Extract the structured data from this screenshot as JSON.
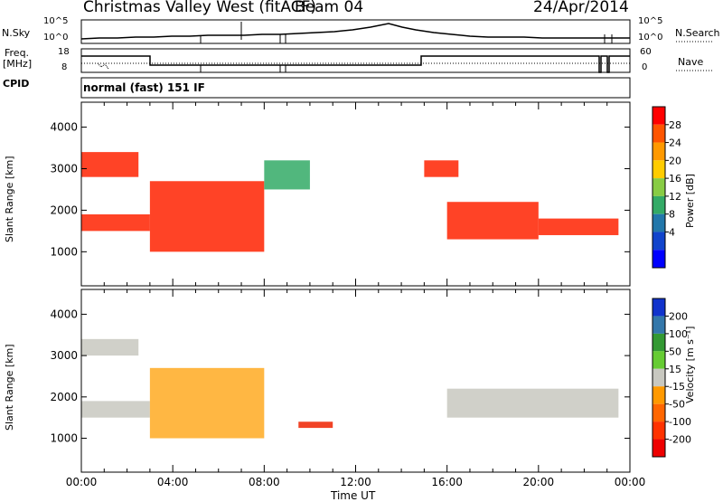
{
  "header": {
    "station": "Christmas Valley West (fitACF)",
    "beam": "Beam 04",
    "date": "24/Apr/2014"
  },
  "strips": {
    "nsky_label": "N.Sky",
    "nsky_ticks": [
      "10^5",
      "10^0"
    ],
    "nsearch_label": "N.Search",
    "freq_label_1": "Freq.",
    "freq_label_2": "[MHz]",
    "freq_ticks": [
      "18",
      "8"
    ],
    "nave_label": "Nave",
    "nave_ticks": [
      "60",
      "0"
    ],
    "cpid_label": "CPID",
    "cpid_value": "normal (fast) 151 IF"
  },
  "chart_data": [
    {
      "type": "heatmap",
      "name": "Power",
      "ylabel": "Slant Range [km]",
      "xlabel": "Time UT",
      "xlim": [
        "00:00",
        "24:00"
      ],
      "ylim": [
        180,
        4600
      ],
      "y_ticks": [
        1000,
        2000,
        3000,
        4000
      ],
      "x_tick_labels": [
        "00:00",
        "04:00",
        "08:00",
        "12:00",
        "16:00",
        "20:00",
        "00:00"
      ],
      "colorbar": {
        "label": "Power [dB]",
        "ticks": [
          "28",
          "24",
          "20",
          "16",
          "12",
          "8",
          "4"
        ],
        "colors": [
          "#ff0000",
          "#ff5500",
          "#ff9900",
          "#ffcc00",
          "#88cc44",
          "#33aa66",
          "#2277aa",
          "#1144cc",
          "#0000ff"
        ]
      },
      "bands": [
        {
          "t": [
            0,
            3
          ],
          "range": [
            1500,
            1900
          ],
          "level": "high"
        },
        {
          "t": [
            0,
            2.5
          ],
          "range": [
            2800,
            3400
          ],
          "level": "high"
        },
        {
          "t": [
            3,
            8
          ],
          "range": [
            1000,
            2700
          ],
          "level": "high"
        },
        {
          "t": [
            8,
            10
          ],
          "range": [
            2500,
            3200
          ],
          "level": "medium"
        },
        {
          "t": [
            15,
            16.5
          ],
          "range": [
            2800,
            3200
          ],
          "level": "high"
        },
        {
          "t": [
            16,
            20
          ],
          "range": [
            1300,
            2200
          ],
          "level": "high"
        },
        {
          "t": [
            20,
            23.5
          ],
          "range": [
            1400,
            1800
          ],
          "level": "high"
        }
      ]
    },
    {
      "type": "heatmap",
      "name": "Velocity",
      "ylabel": "Slant Range [km]",
      "xlabel": "Time UT",
      "xlim": [
        "00:00",
        "24:00"
      ],
      "ylim": [
        180,
        4600
      ],
      "y_ticks": [
        1000,
        2000,
        3000,
        4000
      ],
      "x_tick_labels": [
        "00:00",
        "04:00",
        "08:00",
        "12:00",
        "16:00",
        "20:00",
        "00:00"
      ],
      "colorbar": {
        "label": "Velocity [m s⁻¹]",
        "ticks": [
          "200",
          "100",
          "50",
          "15",
          "-15",
          "-50",
          "-100",
          "-200"
        ],
        "colors": [
          "#1133cc",
          "#3377aa",
          "#339933",
          "#66cc33",
          "#c8c8c0",
          "#ff9900",
          "#ff6600",
          "#ff3300",
          "#ee0000"
        ]
      },
      "bands": [
        {
          "t": [
            0,
            3
          ],
          "range": [
            1500,
            1900
          ],
          "level": "ground"
        },
        {
          "t": [
            0,
            2.5
          ],
          "range": [
            3000,
            3400
          ],
          "level": "ground"
        },
        {
          "t": [
            3,
            8
          ],
          "range": [
            1000,
            2700
          ],
          "level": "negative"
        },
        {
          "t": [
            9.5,
            11
          ],
          "range": [
            1250,
            1400
          ],
          "level": "strong-negative"
        },
        {
          "t": [
            16,
            23.5
          ],
          "range": [
            1500,
            2200
          ],
          "level": "ground"
        }
      ]
    }
  ],
  "xlabel": "Time UT"
}
